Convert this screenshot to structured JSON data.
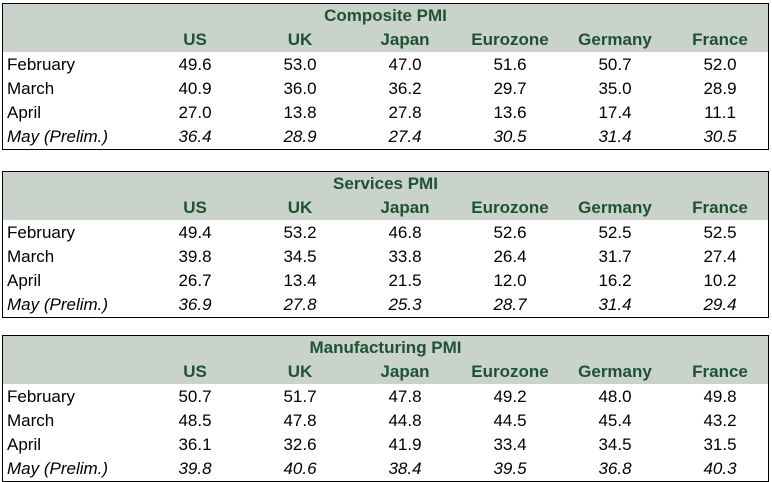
{
  "columns": [
    "US",
    "UK",
    "Japan",
    "Eurozone",
    "Germany",
    "France"
  ],
  "tables": [
    {
      "title": "Composite PMI",
      "rows": [
        {
          "label": "February",
          "values": [
            "49.6",
            "53.0",
            "47.0",
            "51.6",
            "50.7",
            "52.0"
          ]
        },
        {
          "label": "March",
          "values": [
            "40.9",
            "36.0",
            "36.2",
            "29.7",
            "35.0",
            "28.9"
          ]
        },
        {
          "label": "April",
          "values": [
            "27.0",
            "13.8",
            "27.8",
            "13.6",
            "17.4",
            "11.1"
          ]
        },
        {
          "label": "May (Prelim.)",
          "values": [
            "36.4",
            "28.9",
            "27.4",
            "30.5",
            "31.4",
            "30.5"
          ]
        }
      ]
    },
    {
      "title": "Services PMI",
      "rows": [
        {
          "label": "February",
          "values": [
            "49.4",
            "53.2",
            "46.8",
            "52.6",
            "52.5",
            "52.5"
          ]
        },
        {
          "label": "March",
          "values": [
            "39.8",
            "34.5",
            "33.8",
            "26.4",
            "31.7",
            "27.4"
          ]
        },
        {
          "label": "April",
          "values": [
            "26.7",
            "13.4",
            "21.5",
            "12.0",
            "16.2",
            "10.2"
          ]
        },
        {
          "label": "May (Prelim.)",
          "values": [
            "36.9",
            "27.8",
            "25.3",
            "28.7",
            "31.4",
            "29.4"
          ]
        }
      ]
    },
    {
      "title": "Manufacturing PMI",
      "rows": [
        {
          "label": "February",
          "values": [
            "50.7",
            "51.7",
            "47.8",
            "49.2",
            "48.0",
            "49.8"
          ]
        },
        {
          "label": "March",
          "values": [
            "48.5",
            "47.8",
            "44.8",
            "44.5",
            "45.4",
            "43.2"
          ]
        },
        {
          "label": "April",
          "values": [
            "36.1",
            "32.6",
            "41.9",
            "33.4",
            "34.5",
            "31.5"
          ]
        },
        {
          "label": "May (Prelim.)",
          "values": [
            "39.8",
            "40.6",
            "38.4",
            "39.5",
            "36.8",
            "40.3"
          ]
        }
      ]
    }
  ]
}
